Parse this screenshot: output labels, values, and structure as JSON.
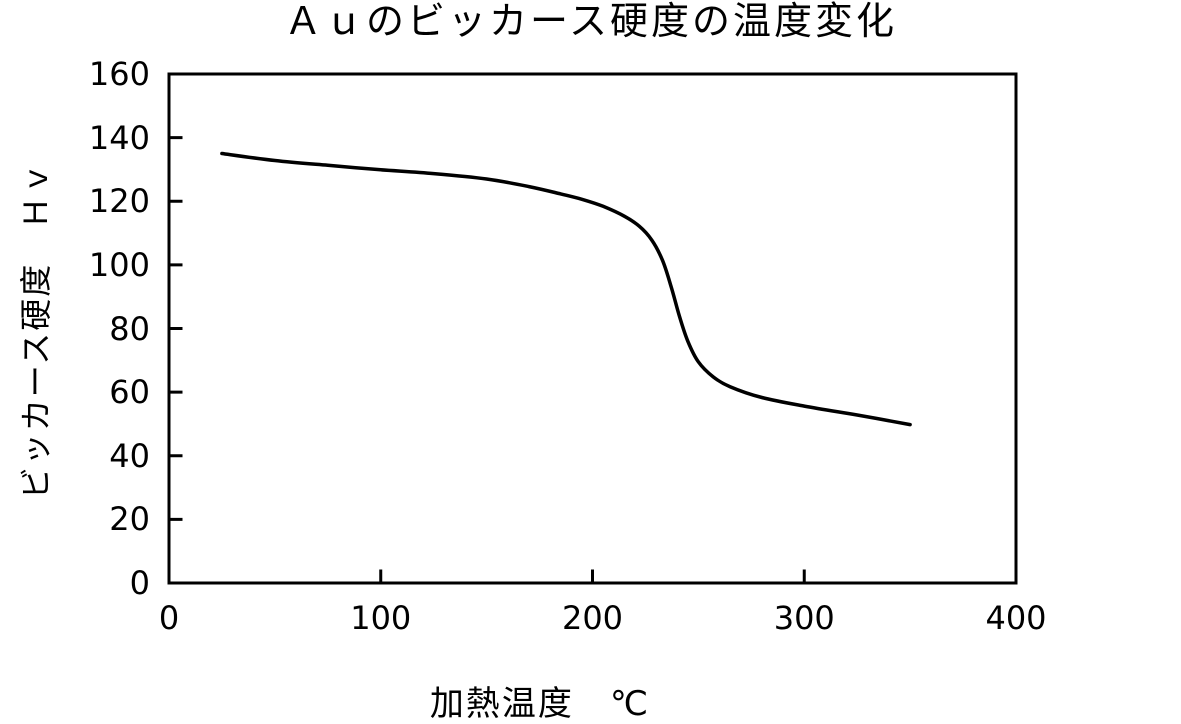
{
  "chart_data": {
    "type": "line",
    "title": "Ａｕのビッカース硬度の温度変化",
    "xlabel": "加熱温度　℃",
    "ylabel": "ビッカース硬度　Ｈｖ",
    "xlim": [
      0,
      400
    ],
    "ylim": [
      0,
      160
    ],
    "xticks": [
      0,
      100,
      200,
      300,
      400
    ],
    "yticks": [
      0,
      20,
      40,
      60,
      80,
      100,
      120,
      140,
      160
    ],
    "grid": false,
    "legend": null,
    "background_color": "#ffffff",
    "axis_color": "#000000",
    "line_color": "#000000",
    "series": [
      {
        "name": "Au hardness vs temperature",
        "points": [
          [
            25,
            135
          ],
          [
            50,
            132.8
          ],
          [
            75,
            131.3
          ],
          [
            100,
            129.9
          ],
          [
            125,
            128.7
          ],
          [
            150,
            127
          ],
          [
            170,
            124.6
          ],
          [
            185,
            122.3
          ],
          [
            195,
            120.6
          ],
          [
            205,
            118.4
          ],
          [
            215,
            115.3
          ],
          [
            222,
            112.2
          ],
          [
            228,
            107.8
          ],
          [
            233,
            101.5
          ],
          [
            237,
            93.5
          ],
          [
            241,
            84
          ],
          [
            245,
            76
          ],
          [
            250,
            69.5
          ],
          [
            257,
            64.8
          ],
          [
            265,
            61.7
          ],
          [
            280,
            58.3
          ],
          [
            300,
            55.6
          ],
          [
            325,
            52.8
          ],
          [
            350,
            49.8
          ]
        ]
      }
    ]
  }
}
